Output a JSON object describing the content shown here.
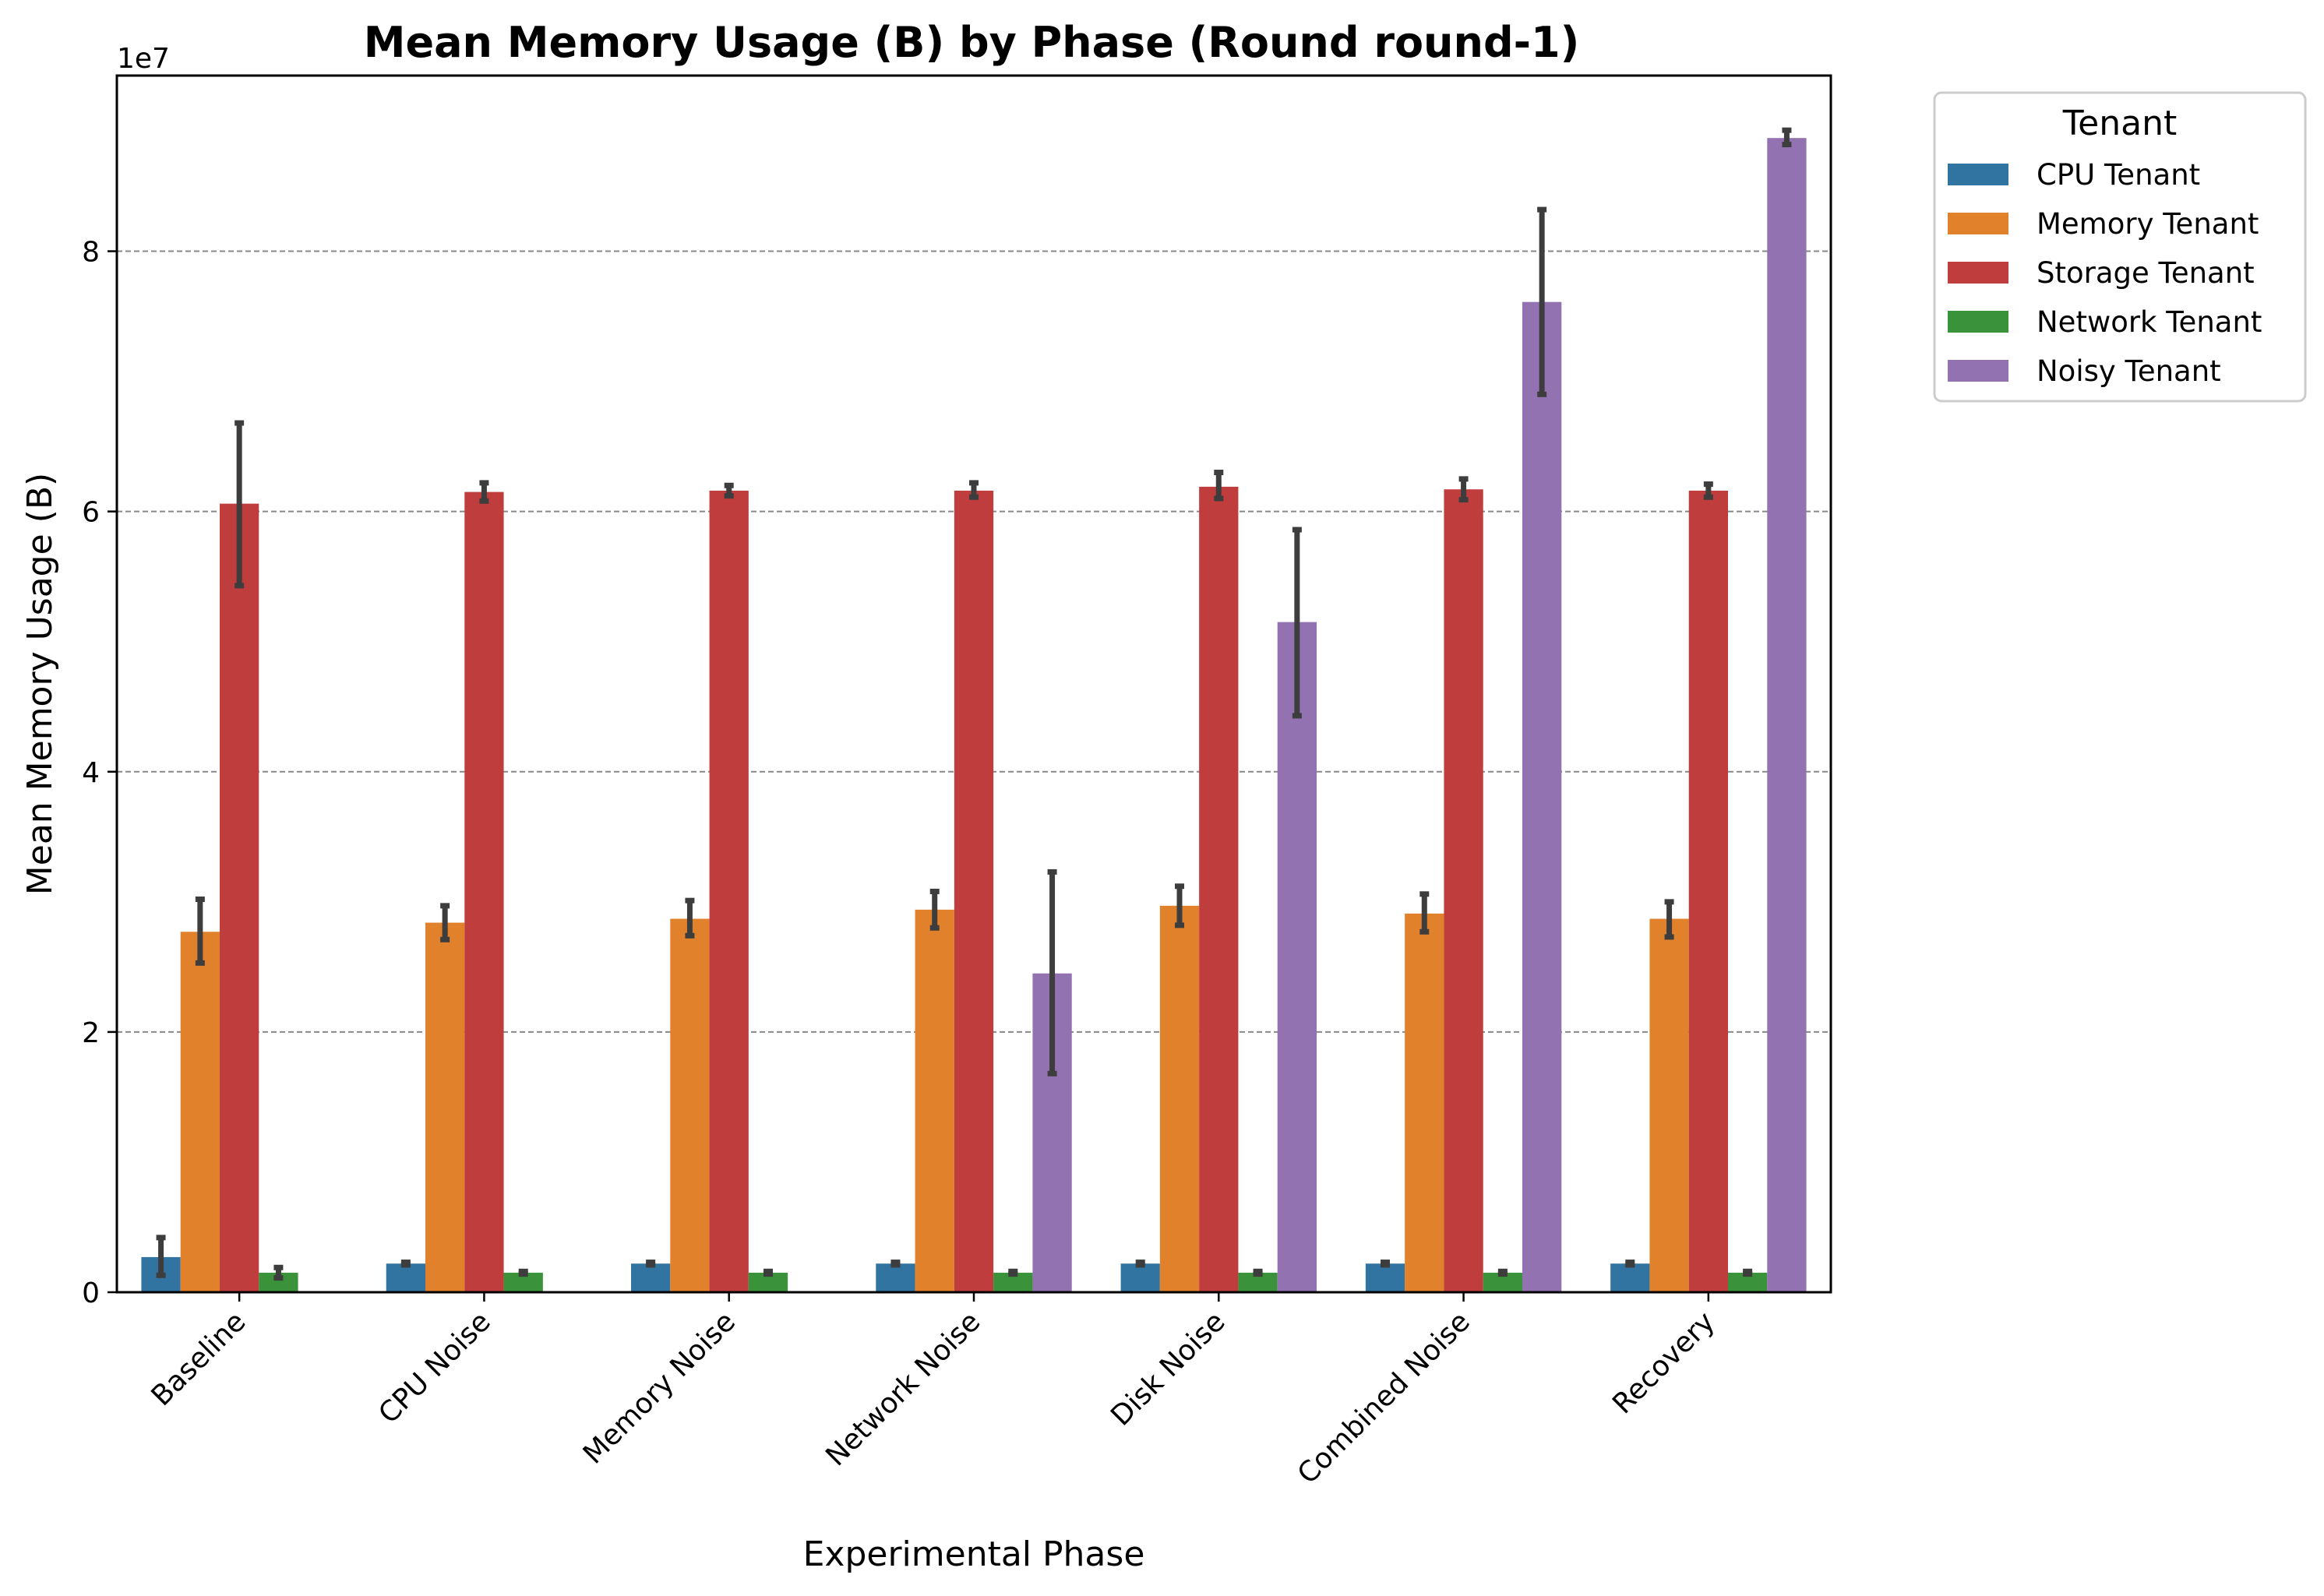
{
  "chart_data": {
    "type": "bar",
    "title": "Mean Memory Usage (B) by Phase (Round round-1)",
    "xlabel": "Experimental Phase",
    "ylabel": "Mean Memory Usage (B)",
    "y_offset_label": "1e7",
    "y_scale_factor": 10000000,
    "ylim": [
      0,
      9.35
    ],
    "yticks": [
      0,
      2,
      4,
      6,
      8
    ],
    "grid": "horizontal dashed",
    "legend_title": "Tenant",
    "legend_position": "outside upper right",
    "categories": [
      "Baseline",
      "CPU Noise",
      "Memory Noise",
      "Network Noise",
      "Disk Noise",
      "Combined Noise",
      "Recovery"
    ],
    "series": [
      {
        "name": "CPU Tenant",
        "color": "#3274a1",
        "values": [
          0.27,
          0.22,
          0.22,
          0.22,
          0.22,
          0.22,
          0.22
        ],
        "err_low": [
          0.13,
          0.21,
          0.21,
          0.21,
          0.21,
          0.21,
          0.21
        ],
        "err_high": [
          0.42,
          0.23,
          0.23,
          0.23,
          0.23,
          0.23,
          0.23
        ]
      },
      {
        "name": "Memory Tenant",
        "color": "#e1812c",
        "values": [
          2.77,
          2.84,
          2.87,
          2.94,
          2.97,
          2.91,
          2.87
        ],
        "err_low": [
          2.53,
          2.71,
          2.74,
          2.8,
          2.82,
          2.77,
          2.73
        ],
        "err_high": [
          3.02,
          2.97,
          3.01,
          3.08,
          3.12,
          3.06,
          3.0
        ]
      },
      {
        "name": "Storage Tenant",
        "color": "#c03d3e",
        "values": [
          6.06,
          6.15,
          6.16,
          6.16,
          6.19,
          6.17,
          6.16
        ],
        "err_low": [
          5.43,
          6.08,
          6.12,
          6.11,
          6.1,
          6.09,
          6.11
        ],
        "err_high": [
          6.68,
          6.22,
          6.2,
          6.22,
          6.3,
          6.25,
          6.21
        ]
      },
      {
        "name": "Network Tenant",
        "color": "#3a923a",
        "values": [
          0.15,
          0.15,
          0.15,
          0.15,
          0.15,
          0.15,
          0.15
        ],
        "err_low": [
          0.11,
          0.14,
          0.14,
          0.14,
          0.14,
          0.14,
          0.14
        ],
        "err_high": [
          0.19,
          0.16,
          0.16,
          0.16,
          0.16,
          0.16,
          0.16
        ]
      },
      {
        "name": "Noisy Tenant",
        "color": "#9372b2",
        "values": [
          null,
          null,
          null,
          2.45,
          5.15,
          7.61,
          8.87
        ],
        "err_low": [
          null,
          null,
          null,
          1.68,
          4.43,
          6.9,
          8.82
        ],
        "err_high": [
          null,
          null,
          null,
          3.23,
          5.86,
          8.32,
          8.93
        ]
      }
    ]
  }
}
